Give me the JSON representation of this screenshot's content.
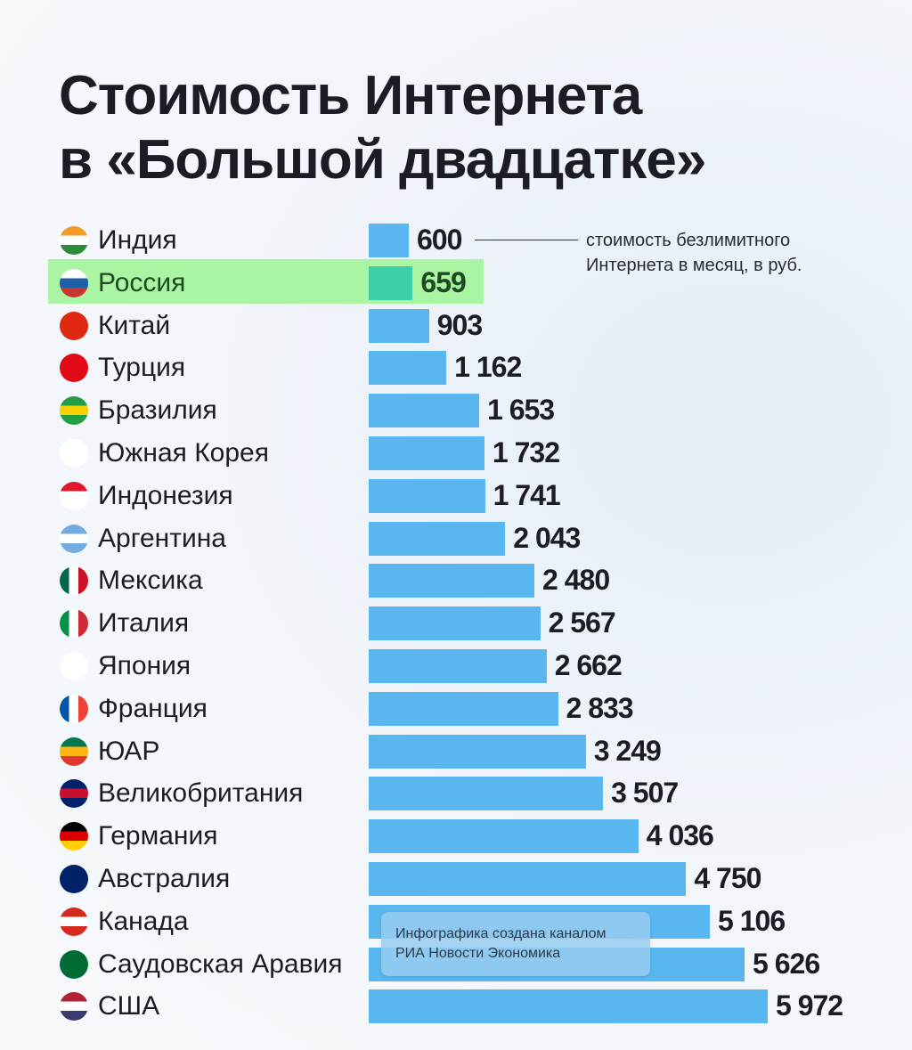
{
  "chart_data": {
    "type": "bar",
    "orientation": "horizontal",
    "title": "Стоимость Интернета в «Большой двадцатке»",
    "annotation": "стоимость безлимитного Интернета в месяц, в руб.",
    "unit": "руб.",
    "categories": [
      "Индия",
      "Россия",
      "Китай",
      "Турция",
      "Бразилия",
      "Южная Корея",
      "Индонезия",
      "Аргентина",
      "Мексика",
      "Италия",
      "Япония",
      "Франция",
      "ЮАР",
      "Великобритания",
      "Германия",
      "Австралия",
      "Канада",
      "Саудовская Аравия",
      "США"
    ],
    "values": [
      600,
      659,
      903,
      1162,
      1653,
      1732,
      1741,
      2043,
      2480,
      2567,
      2662,
      2833,
      3249,
      3507,
      4036,
      4750,
      5106,
      5626,
      5972
    ],
    "value_labels": [
      "600",
      "659",
      "903",
      "1 162",
      "1 653",
      "1 732",
      "1 741",
      "2 043",
      "2 480",
      "2 567",
      "2 662",
      "2 833",
      "3 249",
      "3 507",
      "4 036",
      "4 750",
      "5 106",
      "5 626",
      "5 972"
    ],
    "highlight": "Россия",
    "xlim": [
      0,
      5972
    ]
  },
  "colors": {
    "bar": "#5ab6ee",
    "highlight_bar": "#3fcfa8",
    "highlight_row": "#a9f5a4"
  },
  "flags": [
    [
      "#f39a2b",
      "#ffffff",
      "#2e8b3a"
    ],
    [
      "#ffffff",
      "#1f5fa8",
      "#c8352c"
    ],
    [
      "#de2910",
      "#de2910",
      "#de2910"
    ],
    [
      "#e30a17",
      "#e30a17",
      "#e30a17"
    ],
    [
      "#229e45",
      "#f8d200",
      "#229e45"
    ],
    [
      "#ffffff",
      "#ffffff",
      "#ffffff"
    ],
    [
      "#e0182d",
      "#ffffff",
      "#ffffff"
    ],
    [
      "#74acdf",
      "#ffffff",
      "#74acdf"
    ],
    [
      "#006847",
      "#ffffff",
      "#ce1126"
    ],
    [
      "#009246",
      "#ffffff",
      "#ce2b37"
    ],
    [
      "#ffffff",
      "#ffffff",
      "#ffffff"
    ],
    [
      "#0055a4",
      "#ffffff",
      "#ef4135"
    ],
    [
      "#007a4d",
      "#ffb612",
      "#de3831"
    ],
    [
      "#012169",
      "#c8102e",
      "#012169"
    ],
    [
      "#000000",
      "#dd0000",
      "#ffce00"
    ],
    [
      "#012169",
      "#012169",
      "#012169"
    ],
    [
      "#d52b1e",
      "#ffffff",
      "#d52b1e"
    ],
    [
      "#006c35",
      "#006c35",
      "#006c35"
    ],
    [
      "#b22234",
      "#ffffff",
      "#3c3b6e"
    ]
  ],
  "credit": {
    "line1": "Инфографика создана каналом",
    "line2": "РИА Новости Экономика"
  }
}
